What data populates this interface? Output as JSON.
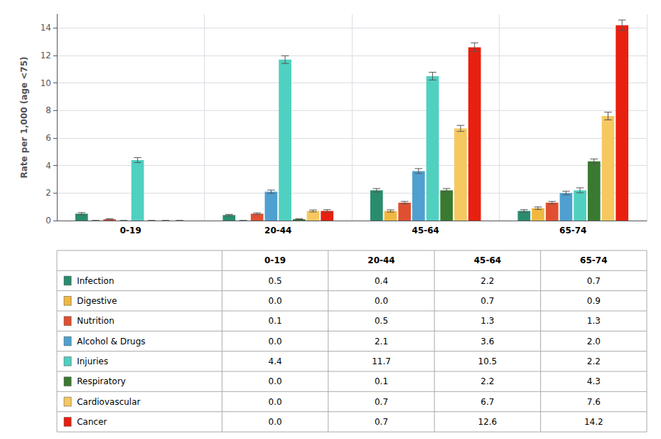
{
  "chart_data": {
    "type": "bar",
    "categories": [
      "0-19",
      "20-44",
      "45-64",
      "65-74"
    ],
    "series": [
      {
        "name": "Infection",
        "color": "#2a8c6e",
        "values": [
          0.5,
          0.4,
          2.2,
          0.7
        ],
        "errors": [
          0.08,
          0.05,
          0.13,
          0.09
        ],
        "value_labels": [
          "0.5",
          "0.4",
          "2.2",
          "0.7"
        ]
      },
      {
        "name": "Digestive",
        "color": "#f0b840",
        "values": [
          0.0,
          0.0,
          0.7,
          0.9
        ],
        "errors": [
          0.01,
          0.01,
          0.08,
          0.09
        ],
        "value_labels": [
          "0.0",
          "0.0",
          "0.7",
          "0.9"
        ]
      },
      {
        "name": "Nutrition",
        "color": "#e05030",
        "values": [
          0.1,
          0.5,
          1.3,
          1.3
        ],
        "errors": [
          0.04,
          0.06,
          0.09,
          0.09
        ],
        "value_labels": [
          "0.1",
          "0.5",
          "1.3",
          "1.3"
        ]
      },
      {
        "name": "Alcohol & Drugs",
        "color": "#4fa0d0",
        "values": [
          0.0,
          2.1,
          3.6,
          2.0
        ],
        "errors": [
          0.01,
          0.12,
          0.18,
          0.13
        ],
        "value_labels": [
          "0.0",
          "2.1",
          "3.6",
          "2.0"
        ]
      },
      {
        "name": "Injuries",
        "color": "#50d0c0",
        "values": [
          4.4,
          11.7,
          10.5,
          2.2
        ],
        "errors": [
          0.18,
          0.28,
          0.28,
          0.18
        ],
        "value_labels": [
          "4.4",
          "11.7",
          "10.5",
          "2.2"
        ]
      },
      {
        "name": "Respiratory",
        "color": "#3a7a30",
        "values": [
          0.0,
          0.1,
          2.2,
          4.3
        ],
        "errors": [
          0.01,
          0.03,
          0.13,
          0.18
        ],
        "value_labels": [
          "0.0",
          "0.1",
          "2.2",
          "4.3"
        ]
      },
      {
        "name": "Cardiovascular",
        "color": "#f5c860",
        "values": [
          0.0,
          0.7,
          6.7,
          7.6
        ],
        "errors": [
          0.01,
          0.07,
          0.22,
          0.28
        ],
        "value_labels": [
          "0.0",
          "0.7",
          "6.7",
          "7.6"
        ]
      },
      {
        "name": "Cancer",
        "color": "#e82010",
        "values": [
          0.0,
          0.7,
          12.6,
          14.2
        ],
        "errors": [
          0.01,
          0.09,
          0.32,
          0.38
        ],
        "value_labels": [
          "0.0",
          "0.7",
          "12.6",
          "14.2"
        ]
      }
    ],
    "ylabel": "Rate per 1,000 (age <75)",
    "ylim": [
      0,
      15
    ],
    "yticks": [
      0,
      2,
      4,
      6,
      8,
      10,
      12,
      14
    ],
    "grid": true
  }
}
